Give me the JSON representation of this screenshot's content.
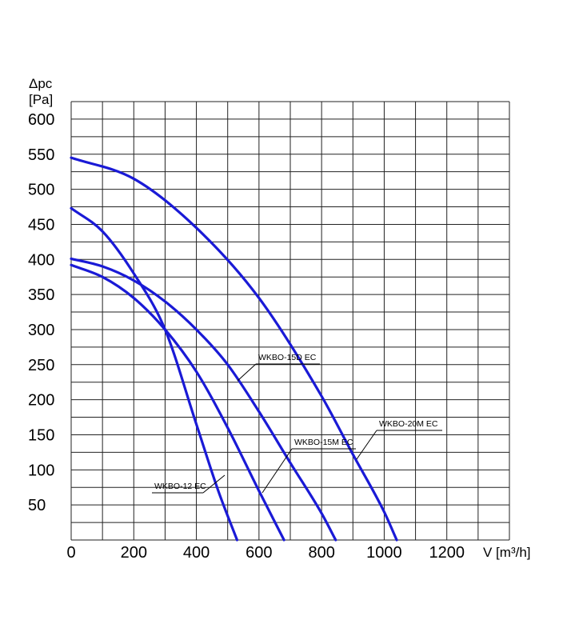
{
  "chart_data": {
    "type": "line",
    "title": "",
    "ylabel_line1": "Δpc",
    "ylabel_line2": "[Pa]",
    "xlabel": "V [m³/h]",
    "xlim": [
      0,
      1400
    ],
    "ylim": [
      0,
      625
    ],
    "grid": true,
    "line_color": "#1a1ad6",
    "x_ticks": [
      0,
      200,
      400,
      600,
      800,
      1000,
      1200
    ],
    "x_tick_labels": [
      "0",
      "200",
      "400",
      "600",
      "800",
      "1000",
      "1200"
    ],
    "y_ticks": [
      50,
      100,
      150,
      200,
      250,
      300,
      350,
      400,
      450,
      500,
      550,
      600
    ],
    "y_tick_labels": [
      "50",
      "100",
      "150",
      "200",
      "250",
      "300",
      "350",
      "400",
      "450",
      "500",
      "550",
      "600"
    ],
    "series": [
      {
        "name": "WKBO-12 EC",
        "x": [
          0,
          100,
          200,
          300,
          400,
          470,
          530
        ],
        "y": [
          473,
          440,
          380,
          300,
          165,
          70,
          0
        ]
      },
      {
        "name": "WKBO-15M EC",
        "x": [
          0,
          100,
          200,
          300,
          400,
          500,
          600,
          680
        ],
        "y": [
          392,
          375,
          345,
          300,
          240,
          160,
          70,
          0
        ]
      },
      {
        "name": "WKBO-15D EC",
        "x": [
          0,
          100,
          200,
          300,
          400,
          500,
          600,
          700,
          800,
          845
        ],
        "y": [
          401,
          390,
          370,
          340,
          300,
          250,
          183,
          110,
          38,
          0
        ]
      },
      {
        "name": "WKBO-20M EC",
        "x": [
          0,
          200,
          400,
          600,
          800,
          900,
          1000,
          1040
        ],
        "y": [
          545,
          515,
          445,
          345,
          205,
          122,
          40,
          0
        ]
      }
    ],
    "annotations": [
      {
        "text": "WKBO-12 EC",
        "series": 0
      },
      {
        "text": "WKBO-15M EC",
        "series": 1
      },
      {
        "text": "WKBO-15D EC",
        "series": 2
      },
      {
        "text": "WKBO-20M EC",
        "series": 3
      }
    ]
  }
}
